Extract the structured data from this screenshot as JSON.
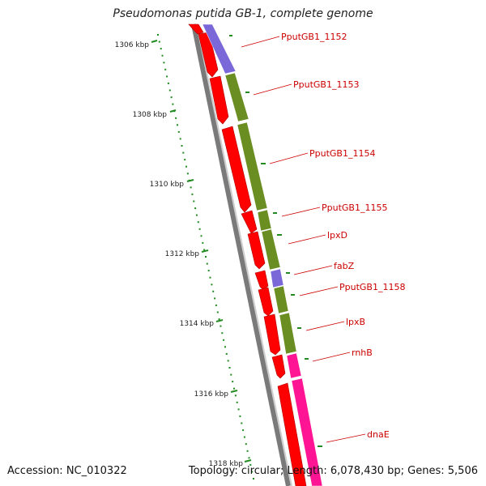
{
  "title": "Pseudomonas putida GB-1, complete genome",
  "accession": "Accession: NC_010322",
  "summary": "Topology: circular; Length: 6,078,430 bp; Genes: 5,506",
  "ticks": [
    "1306 kbp",
    "1308 kbp",
    "1310 kbp",
    "1312 kbp",
    "1314 kbp",
    "1316 kbp",
    "1318 kbp"
  ],
  "genes": [
    "PputGB1_1152",
    "PputGB1_1153",
    "PputGB1_1154",
    "PputGB1_1155",
    "lpxD",
    "fabZ",
    "PputGB1_1158",
    "lpxB",
    "rnhB",
    "dnaE"
  ],
  "colors": {
    "backbone": "#7a7a7a",
    "cds_strand": "#ff0000",
    "cog_purple": "#7b68d8",
    "cog_olive": "#6b8e23",
    "cog_pink": "#ff1493",
    "tick": "#228b22",
    "label": "#cc0000"
  }
}
